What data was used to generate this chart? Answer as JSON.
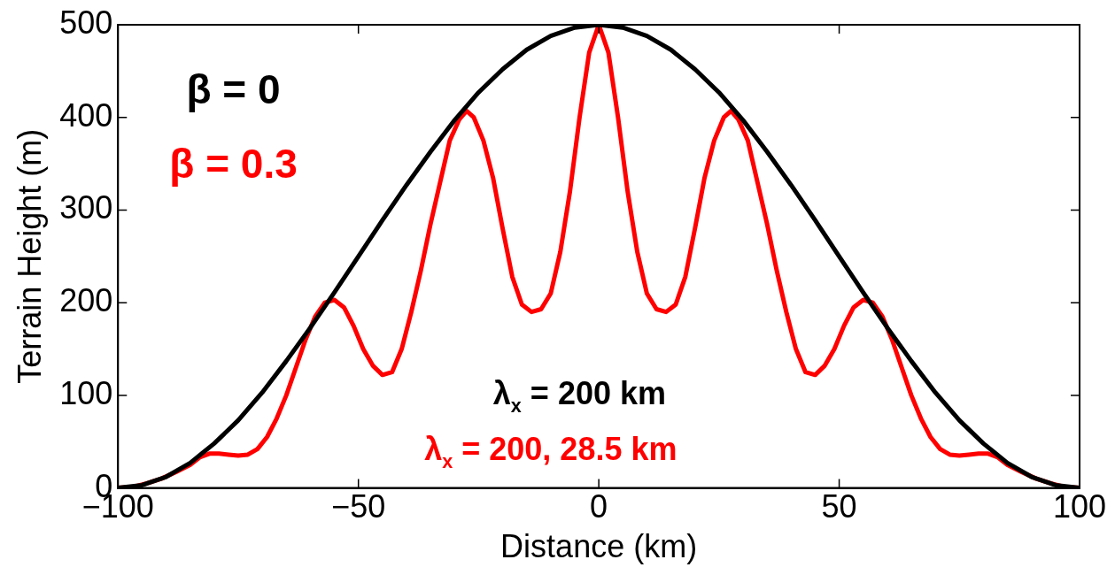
{
  "chart_data": {
    "type": "line",
    "xlabel": "Distance (km)",
    "ylabel": "Terrain Height (m)",
    "xlim": [
      -100,
      100
    ],
    "xticks": [
      {
        "value": -100,
        "label": "−100"
      },
      {
        "value": -50,
        "label": "−50"
      },
      0,
      50,
      100
    ],
    "ylim": [
      0,
      500
    ],
    "yticks": [
      0,
      100,
      200,
      300,
      400,
      500
    ],
    "grid": false,
    "legend": false,
    "marker": "none",
    "line_style": "solid",
    "series": [
      {
        "color": "#000000",
        "x": [
          -100,
          -95,
          -90,
          -85,
          -80,
          -75,
          -70,
          -65,
          -60,
          -55,
          -50,
          -45,
          -40,
          -35,
          -30,
          -25,
          -20,
          -15,
          -10,
          -5,
          0,
          5,
          10,
          15,
          20,
          25,
          30,
          35,
          40,
          45,
          50,
          55,
          60,
          65,
          70,
          75,
          80,
          85,
          90,
          95,
          100
        ],
        "values": [
          0,
          3,
          12,
          27,
          48,
          73,
          103,
          137,
          173,
          211,
          250,
          289,
          327,
          363,
          397,
          427,
          452,
          473,
          488,
          497,
          500,
          497,
          488,
          473,
          452,
          427,
          397,
          363,
          327,
          289,
          250,
          211,
          173,
          137,
          103,
          73,
          48,
          27,
          12,
          3,
          0
        ]
      },
      {
        "color": "#ff0000",
        "x": [
          -100,
          -97,
          -94,
          -91,
          -88,
          -85,
          -83,
          -81,
          -79,
          -77,
          -75,
          -73,
          -71,
          -69,
          -67,
          -65,
          -63,
          -61,
          -59,
          -57,
          -55,
          -53,
          -51,
          -49,
          -47,
          -45,
          -43,
          -41,
          -39,
          -37,
          -35,
          -33,
          -31,
          -29,
          -27.5,
          -26,
          -24,
          -22,
          -20,
          -18,
          -16,
          -14,
          -12,
          -10,
          -8,
          -6,
          -4,
          -2,
          0,
          2,
          4,
          6,
          8,
          10,
          12,
          14,
          16,
          18,
          20,
          22,
          24,
          26,
          27.5,
          29,
          31,
          33,
          35,
          37,
          39,
          41,
          43,
          45,
          47,
          49,
          51,
          53,
          55,
          57,
          59,
          61,
          63,
          65,
          67,
          69,
          71,
          73,
          75,
          77,
          79,
          81,
          83,
          85,
          88,
          91,
          94,
          97,
          100
        ],
        "values": [
          0,
          1,
          5,
          10,
          17,
          25,
          33,
          37,
          37,
          36,
          35,
          36,
          42,
          55,
          75,
          100,
          130,
          160,
          185,
          200,
          203,
          195,
          175,
          150,
          132,
          122,
          125,
          150,
          190,
          235,
          285,
          330,
          375,
          398,
          407,
          400,
          375,
          335,
          280,
          228,
          198,
          190,
          193,
          210,
          255,
          320,
          400,
          470,
          500,
          470,
          400,
          320,
          255,
          210,
          193,
          190,
          198,
          228,
          280,
          335,
          375,
          400,
          407,
          398,
          375,
          330,
          285,
          235,
          190,
          150,
          125,
          122,
          132,
          150,
          175,
          195,
          203,
          200,
          185,
          160,
          130,
          100,
          75,
          55,
          42,
          36,
          35,
          36,
          37,
          37,
          33,
          25,
          17,
          10,
          5,
          1,
          0
        ]
      }
    ],
    "annotations": [
      "β = 0",
      "β = 0.3",
      "λ$_{x}$ = 200 km",
      "λ$_{x}$ = 200, 28.5 km"
    ]
  }
}
